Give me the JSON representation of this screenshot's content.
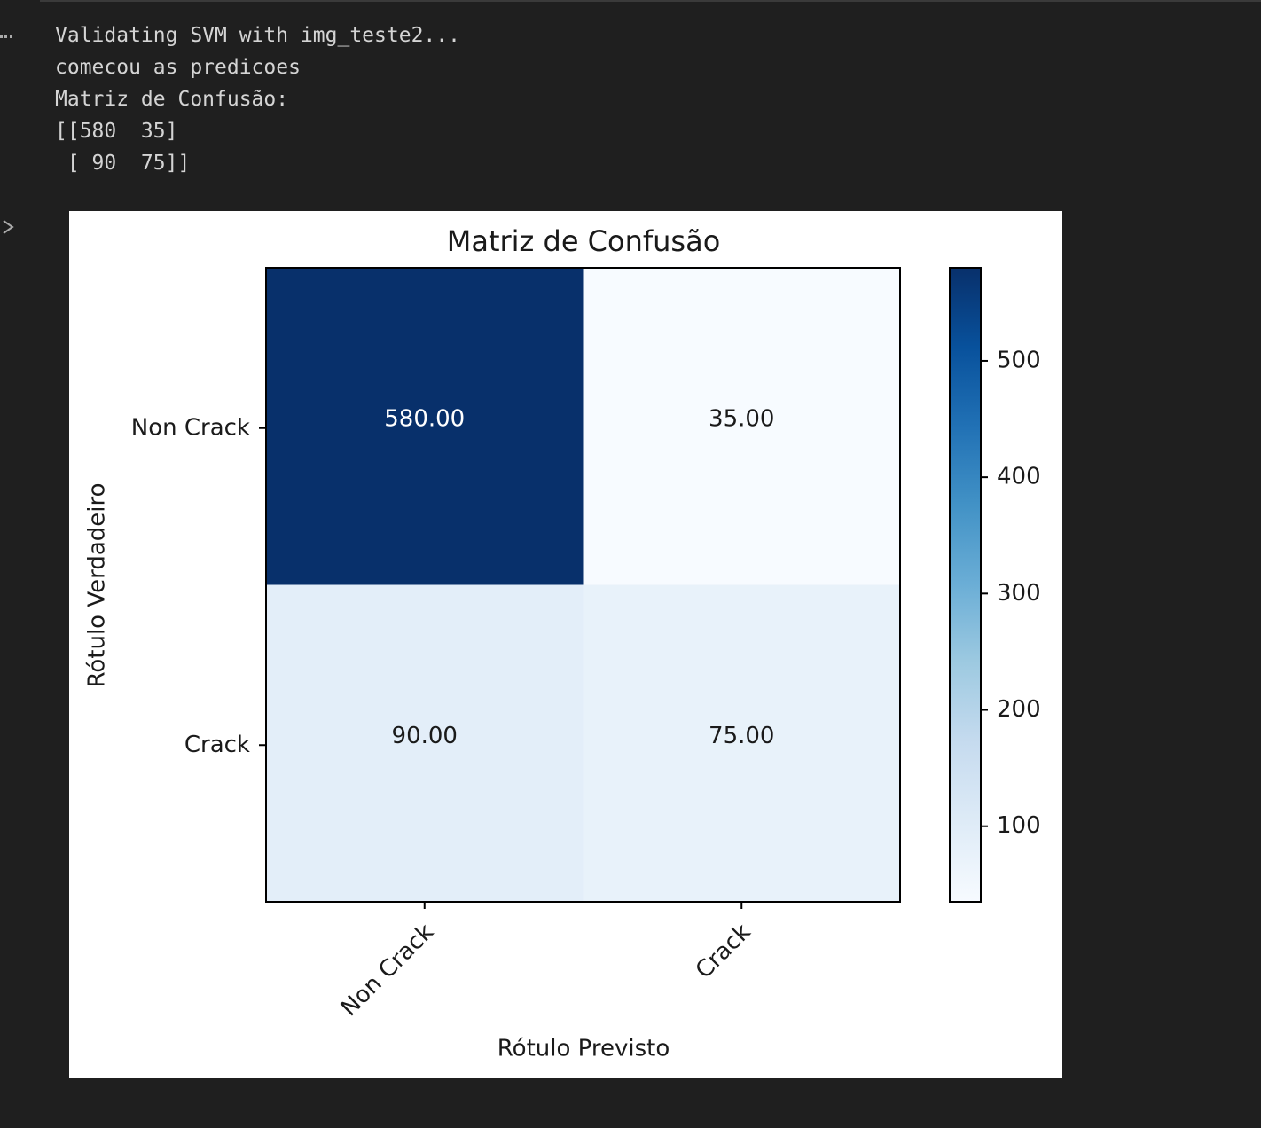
{
  "console": {
    "lines": [
      "Validating SVM with img_teste2...",
      "comecou as predicoes",
      "Matriz de Confusão:",
      "[[580  35]",
      " [ 90  75]]"
    ]
  },
  "chart_data": {
    "type": "heatmap",
    "title": "Matriz de Confusão",
    "x_label": "Rótulo Previsto",
    "y_label": "Rótulo Verdadeiro",
    "x_categories": [
      "Non Crack",
      "Crack"
    ],
    "y_categories": [
      "Non Crack",
      "Crack"
    ],
    "values": [
      [
        580,
        35
      ],
      [
        90,
        75
      ]
    ],
    "value_labels": [
      [
        "580.00",
        "35.00"
      ],
      [
        "90.00",
        "75.00"
      ]
    ],
    "colors": [
      "#f7fbff",
      "#deebf7",
      "#c6dbef",
      "#9ecae1",
      "#6baed6",
      "#4292c6",
      "#2171b5",
      "#08519c",
      "#08306b"
    ],
    "clim": [
      35,
      580
    ],
    "cticks": [
      100,
      200,
      300,
      400,
      500
    ]
  }
}
